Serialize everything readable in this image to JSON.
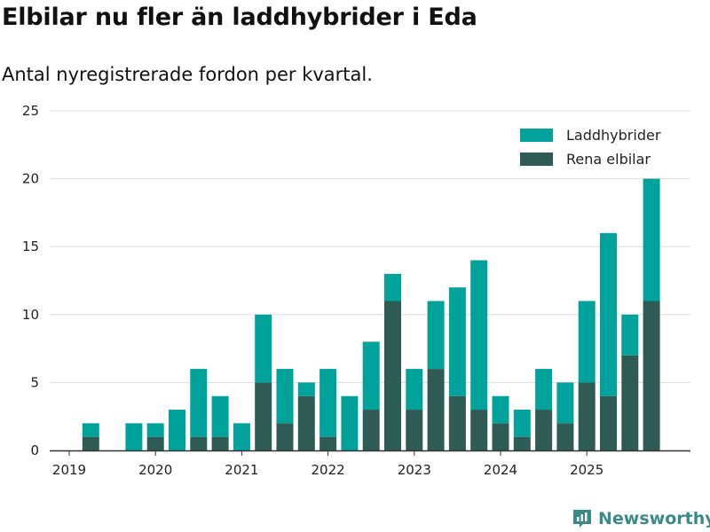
{
  "title": "Elbilar nu fler än laddhybrider i Eda",
  "subtitle": "Antal nyregistrerade fordon per kvartal.",
  "brand": "Newsworthy",
  "colors": {
    "laddhybrider": "#00a39b",
    "rena_elbilar": "#2f5b55",
    "grid": "#dddddd",
    "axis": "#333333"
  },
  "chart_data": {
    "type": "bar",
    "stacked": true,
    "title": "Elbilar nu fler än laddhybrider i Eda",
    "subtitle": "Antal nyregistrerade fordon per kvartal.",
    "xlabel": "",
    "ylabel": "",
    "ylim": [
      0,
      25
    ],
    "yticks": [
      0,
      5,
      10,
      15,
      20,
      25
    ],
    "grid": true,
    "legend_position": "top-right",
    "categories": [
      "2019 Q1",
      "2019 Q2",
      "2019 Q3",
      "2019 Q4",
      "2020 Q1",
      "2020 Q2",
      "2020 Q3",
      "2020 Q4",
      "2021 Q1",
      "2021 Q2",
      "2021 Q3",
      "2021 Q4",
      "2022 Q1",
      "2022 Q2",
      "2022 Q3",
      "2022 Q4",
      "2023 Q1",
      "2023 Q2",
      "2023 Q3",
      "2023 Q4",
      "2024 Q1",
      "2024 Q2",
      "2024 Q3",
      "2024 Q4",
      "2025 Q1",
      "2025 Q2",
      "2025 Q3",
      "2025 Q4"
    ],
    "year_labels": [
      {
        "label": "2019",
        "index": 0
      },
      {
        "label": "2020",
        "index": 4
      },
      {
        "label": "2021",
        "index": 8
      },
      {
        "label": "2022",
        "index": 12
      },
      {
        "label": "2023",
        "index": 16
      },
      {
        "label": "2024",
        "index": 20
      },
      {
        "label": "2025",
        "index": 24
      }
    ],
    "series": [
      {
        "name": "Rena elbilar",
        "key": "rena_elbilar",
        "values": [
          0,
          1,
          0,
          0,
          1,
          0,
          1,
          1,
          0,
          5,
          2,
          4,
          1,
          0,
          3,
          11,
          3,
          6,
          4,
          3,
          2,
          1,
          3,
          2,
          5,
          4,
          7,
          11
        ]
      },
      {
        "name": "Laddhybrider",
        "key": "laddhybrider",
        "values": [
          0,
          1,
          0,
          2,
          1,
          3,
          5,
          3,
          2,
          5,
          4,
          1,
          5,
          4,
          5,
          2,
          3,
          5,
          8,
          11,
          2,
          2,
          3,
          3,
          6,
          12,
          3,
          9
        ]
      }
    ],
    "legend": [
      {
        "name": "Laddhybrider",
        "key": "laddhybrider"
      },
      {
        "name": "Rena elbilar",
        "key": "rena_elbilar"
      }
    ]
  }
}
